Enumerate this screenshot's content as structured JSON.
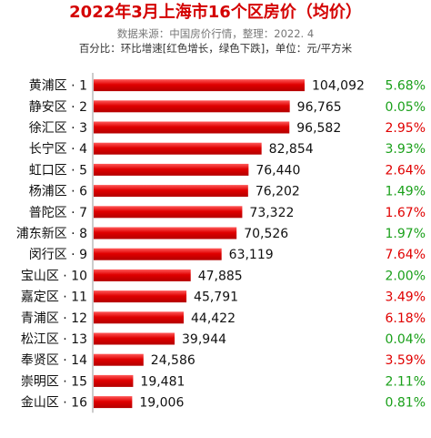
{
  "header": {
    "title": "2022年3月上海市16个区房价（均价）",
    "source_line": "数据来源：中国房价行情，整理：2022. 4",
    "legend_line": "百分比：环比增速[红色增长，绿色下跌]，单位：元/平方米"
  },
  "colors": {
    "bar": "#e00000",
    "title": "#d40000",
    "up": "#e00000",
    "down": "#1aa01a"
  },
  "chart_data": {
    "type": "bar",
    "orientation": "horizontal",
    "title": "2022年3月上海市16个区房价（均价）",
    "categories": [
      "黄浦区 · 1",
      "静安区 · 2",
      "徐汇区 · 3",
      "长宁区 · 4",
      "虹口区 · 5",
      "杨浦区 · 6",
      "普陀区 · 7",
      "浦东新区 · 8",
      "闵行区 · 9",
      "宝山区 · 10",
      "嘉定区 · 11",
      "青浦区 · 12",
      "松江区 · 13",
      "奉贤区 · 14",
      "崇明区 · 15",
      "金山区 · 16"
    ],
    "values": [
      104092,
      96765,
      96582,
      82854,
      76440,
      76202,
      73322,
      70526,
      63119,
      47885,
      45791,
      44422,
      39944,
      24586,
      19481,
      19006
    ],
    "value_labels": [
      "104,092",
      "96,765",
      "96,582",
      "82,854",
      "76,440",
      "76,202",
      "73,322",
      "70,526",
      "63,119",
      "47,885",
      "45,791",
      "44,422",
      "39,944",
      "24,586",
      "19,481",
      "19,006"
    ],
    "mom_change": [
      "5.68%",
      "0.05%",
      "2.95%",
      "3.93%",
      "2.64%",
      "1.49%",
      "1.67%",
      "1.97%",
      "7.64%",
      "2.00%",
      "3.49%",
      "6.18%",
      "0.04%",
      "3.59%",
      "2.11%",
      "0.81%"
    ],
    "mom_color": [
      "down",
      "down",
      "up",
      "down",
      "up",
      "down",
      "up",
      "down",
      "up",
      "down",
      "up",
      "up",
      "down",
      "up",
      "down",
      "down"
    ],
    "xlim": [
      0,
      104092
    ],
    "grid": false
  }
}
